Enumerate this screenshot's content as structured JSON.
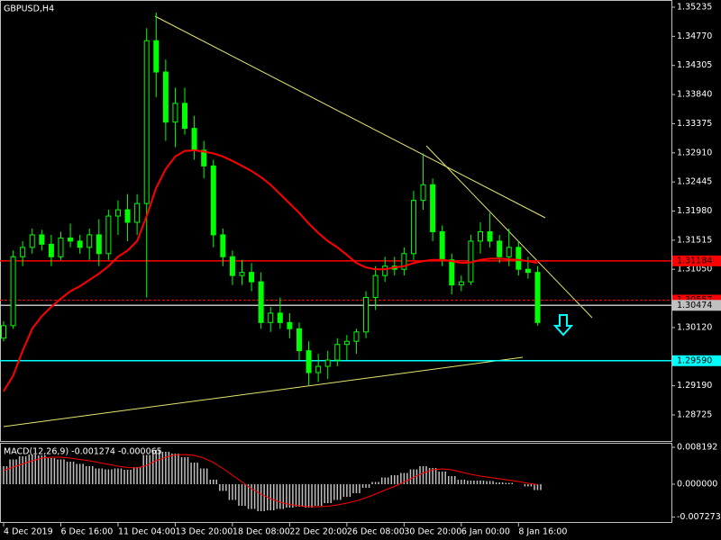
{
  "chart_data": [
    {
      "type": "candlestick",
      "title": "GBPUSD,H4",
      "categories": [
        "4 Dec 2019",
        null,
        null,
        null,
        null,
        null,
        "6 Dec 16:00",
        null,
        null,
        null,
        null,
        null,
        "11 Dec 04:00",
        null,
        null,
        null,
        null,
        null,
        "13 Dec 20:00",
        null,
        null,
        null,
        null,
        null,
        "18 Dec 08:00",
        null,
        null,
        null,
        null,
        null,
        "22 Dec 20:00",
        null,
        null,
        null,
        null,
        null,
        "26 Dec 08:00",
        null,
        null,
        null,
        null,
        null,
        "30 Dec 20:00",
        null,
        null,
        null,
        null,
        null,
        "6 Jan 00:00",
        null,
        null,
        null,
        null,
        null,
        "8 Jan 16:00",
        null,
        null
      ],
      "open": [
        1.2995,
        1.3015,
        1.3125,
        1.314,
        1.316,
        1.3145,
        1.3125,
        1.3155,
        1.315,
        1.314,
        1.316,
        1.313,
        1.319,
        1.32,
        1.318,
        1.321,
        1.347,
        1.342,
        1.334,
        1.337,
        1.333,
        1.3295,
        1.327,
        1.316,
        1.3125,
        1.3095,
        1.31,
        1.3085,
        1.302,
        1.3035,
        1.302,
        1.301,
        1.2975,
        1.294,
        1.295,
        1.296,
        1.2985,
        1.299,
        1.3005,
        1.306,
        1.3095,
        1.311,
        1.3105,
        1.313,
        1.3215,
        1.324,
        1.3165,
        1.312,
        1.308,
        1.3085,
        1.315,
        1.3165,
        1.315,
        1.3125,
        1.314,
        1.3105,
        1.31
      ],
      "high": [
        1.3022,
        1.3135,
        1.315,
        1.317,
        1.3168,
        1.316,
        1.3165,
        1.3178,
        1.316,
        1.317,
        1.3185,
        1.32,
        1.3215,
        1.3225,
        1.3225,
        1.349,
        1.3515,
        1.344,
        1.3395,
        1.3395,
        1.335,
        1.331,
        1.328,
        1.317,
        1.3135,
        1.312,
        1.3115,
        1.31,
        1.3045,
        1.306,
        1.3035,
        1.302,
        1.299,
        1.297,
        1.2975,
        1.2995,
        1.3,
        1.301,
        1.307,
        1.311,
        1.3125,
        1.3125,
        1.314,
        1.323,
        1.329,
        1.325,
        1.3175,
        1.313,
        1.3095,
        1.316,
        1.318,
        1.3195,
        1.316,
        1.317,
        1.315,
        1.3125,
        1.311
      ],
      "low": [
        1.299,
        1.301,
        1.311,
        1.313,
        1.3135,
        1.311,
        1.312,
        1.314,
        1.313,
        1.312,
        1.311,
        1.312,
        1.316,
        1.315,
        1.316,
        1.306,
        1.338,
        1.331,
        1.33,
        1.332,
        1.328,
        1.325,
        1.314,
        1.311,
        1.308,
        1.308,
        1.307,
        1.301,
        1.3005,
        1.301,
        1.2995,
        1.296,
        1.292,
        1.2925,
        1.293,
        1.295,
        1.296,
        1.297,
        1.2995,
        1.304,
        1.3085,
        1.3095,
        1.3095,
        1.312,
        1.32,
        1.315,
        1.311,
        1.3065,
        1.307,
        1.308,
        1.313,
        1.314,
        1.3115,
        1.311,
        1.3095,
        1.309,
        1.3015
      ],
      "close": [
        1.3015,
        1.3125,
        1.314,
        1.316,
        1.3145,
        1.3125,
        1.3155,
        1.315,
        1.314,
        1.316,
        1.313,
        1.319,
        1.32,
        1.318,
        1.321,
        1.347,
        1.342,
        1.334,
        1.337,
        1.333,
        1.3295,
        1.327,
        1.316,
        1.3125,
        1.3095,
        1.31,
        1.3085,
        1.302,
        1.3035,
        1.302,
        1.301,
        1.2975,
        1.294,
        1.295,
        1.296,
        1.2985,
        1.299,
        1.3005,
        1.306,
        1.3095,
        1.311,
        1.3105,
        1.313,
        1.3215,
        1.324,
        1.3165,
        1.312,
        1.308,
        1.3085,
        1.315,
        1.3165,
        1.315,
        1.3125,
        1.314,
        1.3105,
        1.31,
        1.302
      ],
      "color": "#00ff00",
      "ma": {
        "color": "#ff0000",
        "values": [
          1.291,
          1.2935,
          1.2975,
          1.301,
          1.303,
          1.3045,
          1.3058,
          1.307,
          1.3078,
          1.3088,
          1.3098,
          1.311,
          1.3125,
          1.3135,
          1.315,
          1.319,
          1.3235,
          1.3265,
          1.3285,
          1.3294,
          1.3295,
          1.3293,
          1.329,
          1.3285,
          1.3278,
          1.327,
          1.3262,
          1.3252,
          1.324,
          1.3225,
          1.321,
          1.3195,
          1.3178,
          1.3163,
          1.315,
          1.314,
          1.3128,
          1.3115,
          1.3108,
          1.3105,
          1.3105,
          1.3108,
          1.311,
          1.3115,
          1.3118,
          1.312,
          1.312,
          1.3118,
          1.3115,
          1.3116,
          1.312,
          1.3122,
          1.3122,
          1.3121,
          1.312,
          1.3118,
          1.3115
        ]
      },
      "levels": [
        {
          "value": 1.31184,
          "color": "#ff0000",
          "dashed": false
        },
        {
          "value": 1.30557,
          "color": "#ff0000",
          "dashed": true
        },
        {
          "value": 1.30474,
          "color": "#c0c0c0",
          "dashed": false
        },
        {
          "value": 1.2959,
          "label": "1.29590",
          "color": "#00ffff",
          "dashed": false
        }
      ],
      "ylim": [
        1.28308,
        1.3535
      ],
      "yticks": [
        1.35235,
        {
          "value": 1.3477,
          "label": "1.34770"
        },
        1.34305,
        {
          "value": 1.3384,
          "label": "1.33840"
        },
        1.33375,
        {
          "value": 1.3291,
          "label": "1.32910"
        },
        1.32445,
        {
          "value": 1.3198,
          "label": "1.31980"
        },
        1.31515,
        {
          "value": 1.3105,
          "label": "1.31050"
        },
        {
          "value": 1.3012,
          "label": "1.30120"
        },
        {
          "value": 1.2919,
          "label": "1.29190"
        },
        1.28725
      ]
    },
    {
      "type": "macd",
      "title": "MACD(12,26,9) -0.001274 -0.000065",
      "histogram": {
        "color": "#c0c0c0",
        "values": [
          0.004,
          0.0055,
          0.0062,
          0.0066,
          0.0064,
          0.0058,
          0.0055,
          0.005,
          0.0045,
          0.004,
          0.0035,
          0.0033,
          0.0035,
          0.0032,
          0.0038,
          0.0065,
          0.0076,
          0.0072,
          0.0068,
          0.006,
          0.0048,
          0.0035,
          0.001,
          -0.0015,
          -0.0035,
          -0.0048,
          -0.0055,
          -0.006,
          -0.0058,
          -0.0055,
          -0.0052,
          -0.005,
          -0.0052,
          -0.0048,
          -0.0042,
          -0.0035,
          -0.0028,
          -0.002,
          -0.0008,
          0.0005,
          0.0015,
          0.002,
          0.0025,
          0.0033,
          0.004,
          0.0036,
          0.0028,
          0.0018,
          0.001,
          0.0008,
          0.0008,
          0.0007,
          0.0004,
          0.0003,
          0.0,
          -0.0005,
          -0.0013
        ]
      },
      "signal": {
        "color": "#ff0000",
        "values": [
          0.003,
          0.0038,
          0.0045,
          0.0052,
          0.0058,
          0.006,
          0.006,
          0.0058,
          0.0055,
          0.0052,
          0.0048,
          0.0044,
          0.004,
          0.0037,
          0.0036,
          0.0042,
          0.0052,
          0.006,
          0.0065,
          0.0066,
          0.0064,
          0.0058,
          0.0048,
          0.0035,
          0.002,
          0.0005,
          -0.001,
          -0.0022,
          -0.0032,
          -0.004,
          -0.0045,
          -0.0048,
          -0.005,
          -0.005,
          -0.0049,
          -0.0046,
          -0.0042,
          -0.0037,
          -0.003,
          -0.0022,
          -0.0013,
          -0.0005,
          0.0005,
          0.0015,
          0.0025,
          0.0032,
          0.0034,
          0.0032,
          0.0027,
          0.0022,
          0.0018,
          0.0015,
          0.0012,
          0.0009,
          0.0006,
          0.0002,
          -0.0001
        ]
      },
      "ylim": [
        -0.00839,
        0.00919
      ],
      "yticks": [
        0.008192,
        {
          "value": 0,
          "label": "0.000000"
        },
        -0.007273
      ]
    }
  ]
}
